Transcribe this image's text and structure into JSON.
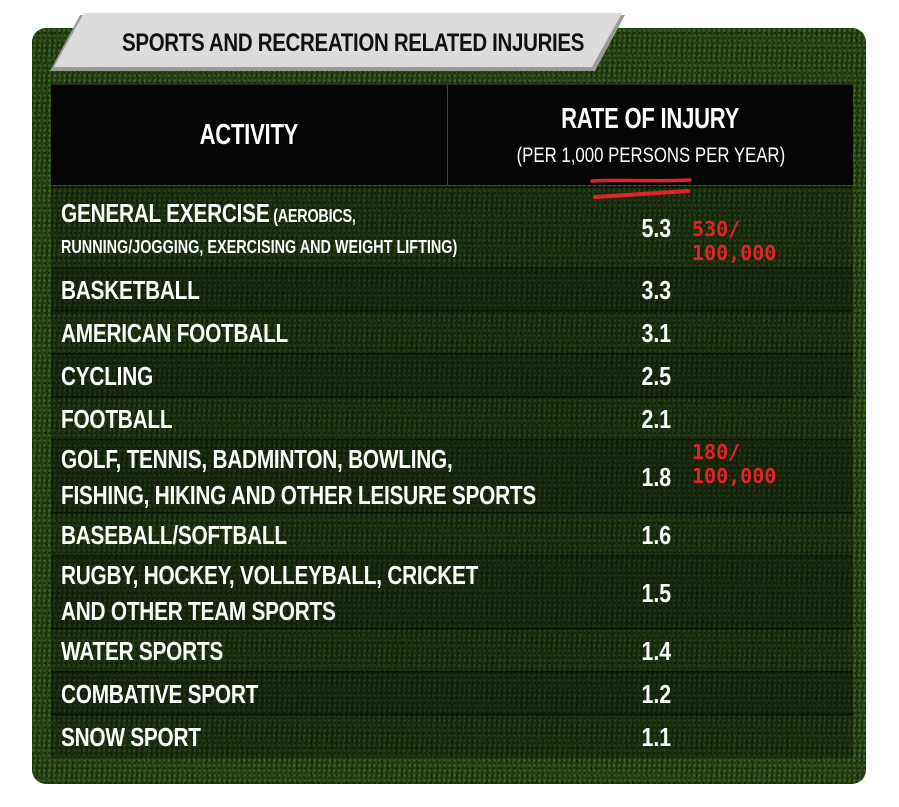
{
  "title": "SPORTS AND RECREATION RELATED INJURIES",
  "header": {
    "activity": "ACTIVITY",
    "rate": "RATE OF INJURY",
    "rate_sub": "(PER 1,000 PERSONS PER YEAR)"
  },
  "annotations": {
    "note1_line1": "530/",
    "note1_line2": "100,000",
    "note2_line1": "180/",
    "note2_line2": "100,000",
    "color": "#e0242a"
  },
  "colors": {
    "background": "#1f3a12",
    "header": "#050505",
    "banner": "#d9d9d9"
  },
  "chart_data": {
    "type": "table",
    "title": "SPORTS AND RECREATION RELATED INJURIES",
    "columns": [
      "ACTIVITY",
      "RATE OF INJURY (PER 1,000 PERSONS PER YEAR)"
    ],
    "rows": [
      {
        "activity": "GENERAL EXERCISE",
        "activity_detail": "(AEROBICS, RUNNING/JOGGING, EXERCISING AND WEIGHT LIFTING)",
        "rate": "5.3"
      },
      {
        "activity": "BASKETBALL",
        "rate": "3.3"
      },
      {
        "activity": "AMERICAN FOOTBALL",
        "rate": "3.1"
      },
      {
        "activity": "CYCLING",
        "rate": "2.5"
      },
      {
        "activity": "FOOTBALL",
        "rate": "2.1"
      },
      {
        "activity": "GOLF, TENNIS, BADMINTON, BOWLING,",
        "activity_line2": "FISHING, HIKING AND OTHER LEISURE SPORTS",
        "rate": "1.8"
      },
      {
        "activity": "BASEBALL/SOFTBALL",
        "rate": "1.6"
      },
      {
        "activity": "RUGBY, HOCKEY, VOLLEYBALL, CRICKET",
        "activity_line2": "AND OTHER TEAM SPORTS",
        "rate": "1.5"
      },
      {
        "activity": "WATER SPORTS",
        "rate": "1.4"
      },
      {
        "activity": "COMBATIVE SPORT",
        "rate": "1.2"
      },
      {
        "activity": "SNOW SPORT",
        "rate": "1.1"
      }
    ]
  }
}
